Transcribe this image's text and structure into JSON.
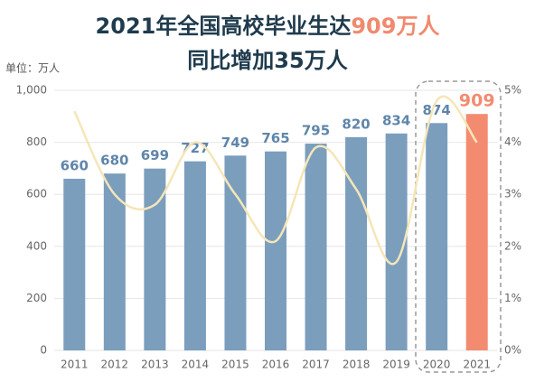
{
  "chart_data": {
    "type": "bar",
    "title": [
      "2021年全国高校毕业生达",
      "909万人"
    ],
    "subtitle": "同比增加35万人",
    "unit": "单位：万人",
    "categories": [
      "2011",
      "2012",
      "2013",
      "2014",
      "2015",
      "2016",
      "2017",
      "2018",
      "2019",
      "2020",
      "2021"
    ],
    "series": [
      {
        "type": "bar",
        "values": [
          660,
          680,
          699,
          727,
          749,
          765,
          795,
          820,
          834,
          874,
          909
        ],
        "colors": [
          "#7b9ebd",
          "#7b9ebd",
          "#7b9ebd",
          "#7b9ebd",
          "#7b9ebd",
          "#7b9ebd",
          "#7b9ebd",
          "#7b9ebd",
          "#7b9ebd",
          "#7b9ebd",
          "#f38b70"
        ],
        "label_colors": [
          "#5f86aa",
          "#5f86aa",
          "#5f86aa",
          "#5f86aa",
          "#5f86aa",
          "#5f86aa",
          "#5f86aa",
          "#5f86aa",
          "#5f86aa",
          "#5f86aa",
          "#f38b70"
        ]
      },
      {
        "type": "line",
        "axis": "y2",
        "color": "#f5e6b8",
        "values": [
          4.6,
          3.0,
          2.8,
          4.0,
          3.0,
          2.1,
          3.9,
          3.1,
          1.7,
          4.8,
          4.0
        ]
      }
    ],
    "ylim": [
      0,
      1000
    ],
    "yticks": [
      0,
      200,
      400,
      600,
      800,
      {
        "value": 1000,
        "label": "1,000"
      }
    ],
    "y2lim": [
      0,
      5
    ],
    "y2ticks": [
      {
        "value": 0,
        "label": "0%"
      },
      {
        "value": 1,
        "label": "1%"
      },
      {
        "value": 2,
        "label": "2%"
      },
      {
        "value": 3,
        "label": "3%"
      },
      {
        "value": 4,
        "label": "4%"
      },
      {
        "value": 5,
        "label": "5%"
      }
    ],
    "grid": true
  }
}
